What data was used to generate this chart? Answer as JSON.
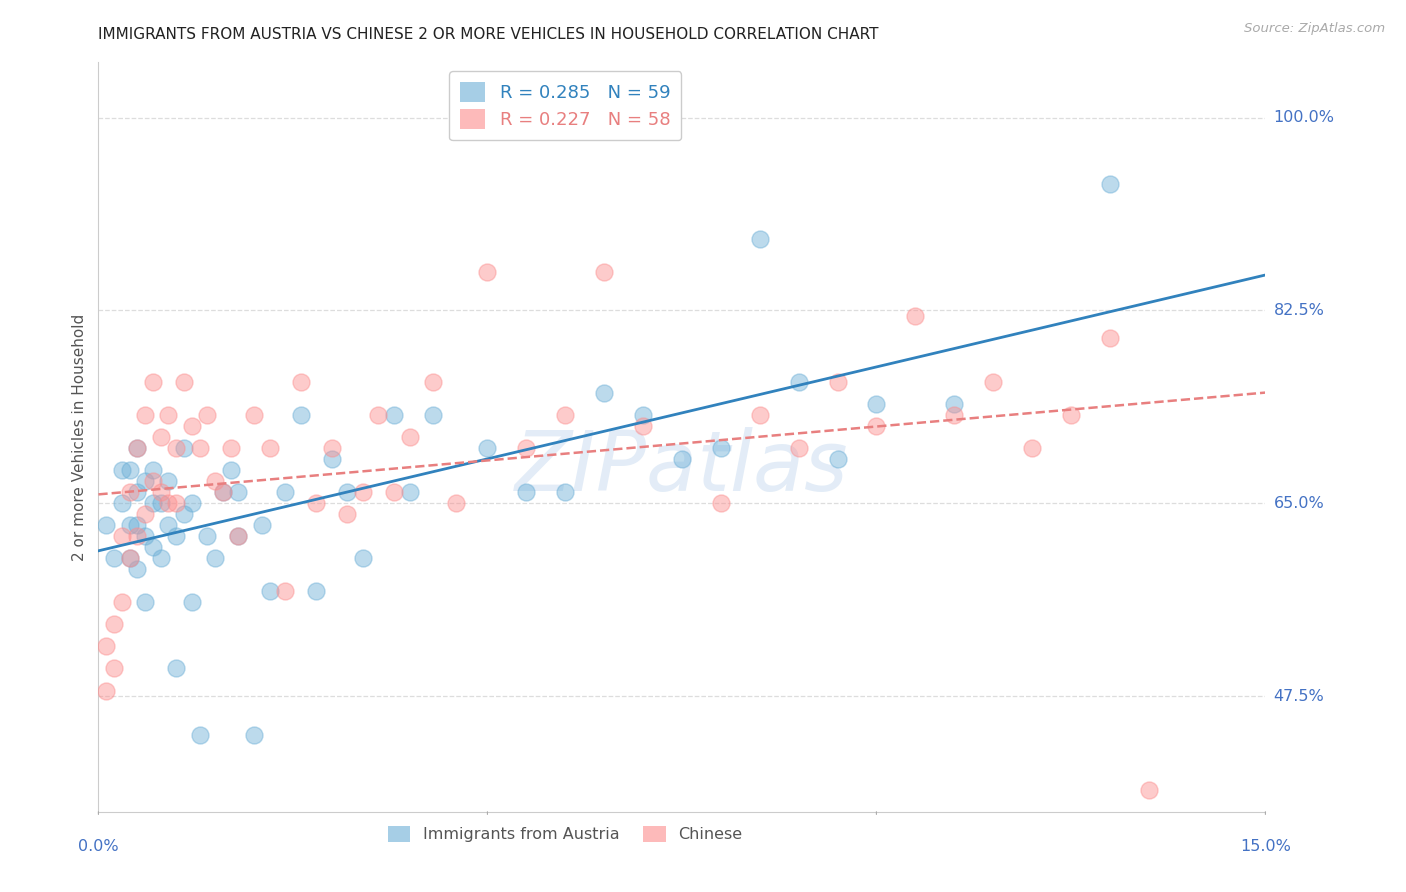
{
  "title": "IMMIGRANTS FROM AUSTRIA VS CHINESE 2 OR MORE VEHICLES IN HOUSEHOLD CORRELATION CHART",
  "source": "Source: ZipAtlas.com",
  "ylabel": "2 or more Vehicles in Household",
  "ytick_labels": [
    "100.0%",
    "82.5%",
    "65.0%",
    "47.5%"
  ],
  "ytick_values": [
    1.0,
    0.825,
    0.65,
    0.475
  ],
  "xlim": [
    0.0,
    0.15
  ],
  "ylim": [
    0.37,
    1.05
  ],
  "legend_color1": "#6baed6",
  "legend_color2": "#fc8d8d",
  "austria_color": "#6baed6",
  "chinese_color": "#fc8d8d",
  "trendline_austria_color": "#3182bd",
  "trendline_chinese_color": "#e87f7f",
  "watermark": "ZIPatlas",
  "austria_x": [
    0.001,
    0.002,
    0.003,
    0.003,
    0.004,
    0.004,
    0.004,
    0.005,
    0.005,
    0.005,
    0.005,
    0.006,
    0.006,
    0.006,
    0.007,
    0.007,
    0.007,
    0.008,
    0.008,
    0.009,
    0.009,
    0.01,
    0.01,
    0.011,
    0.011,
    0.012,
    0.012,
    0.013,
    0.014,
    0.015,
    0.016,
    0.017,
    0.018,
    0.018,
    0.02,
    0.021,
    0.022,
    0.024,
    0.026,
    0.028,
    0.03,
    0.032,
    0.034,
    0.038,
    0.04,
    0.043,
    0.05,
    0.055,
    0.06,
    0.065,
    0.07,
    0.075,
    0.08,
    0.085,
    0.09,
    0.095,
    0.1,
    0.11,
    0.13
  ],
  "austria_y": [
    0.63,
    0.6,
    0.65,
    0.68,
    0.6,
    0.63,
    0.68,
    0.59,
    0.63,
    0.66,
    0.7,
    0.56,
    0.62,
    0.67,
    0.61,
    0.65,
    0.68,
    0.6,
    0.65,
    0.63,
    0.67,
    0.5,
    0.62,
    0.64,
    0.7,
    0.56,
    0.65,
    0.44,
    0.62,
    0.6,
    0.66,
    0.68,
    0.66,
    0.62,
    0.44,
    0.63,
    0.57,
    0.66,
    0.73,
    0.57,
    0.69,
    0.66,
    0.6,
    0.73,
    0.66,
    0.73,
    0.7,
    0.66,
    0.66,
    0.75,
    0.73,
    0.69,
    0.7,
    0.89,
    0.76,
    0.69,
    0.74,
    0.74,
    0.94
  ],
  "chinese_x": [
    0.001,
    0.001,
    0.002,
    0.002,
    0.003,
    0.003,
    0.004,
    0.004,
    0.005,
    0.005,
    0.006,
    0.006,
    0.007,
    0.007,
    0.008,
    0.008,
    0.009,
    0.009,
    0.01,
    0.01,
    0.011,
    0.012,
    0.013,
    0.014,
    0.015,
    0.016,
    0.017,
    0.018,
    0.02,
    0.022,
    0.024,
    0.026,
    0.028,
    0.03,
    0.032,
    0.034,
    0.036,
    0.038,
    0.04,
    0.043,
    0.046,
    0.05,
    0.055,
    0.06,
    0.065,
    0.07,
    0.08,
    0.085,
    0.09,
    0.095,
    0.1,
    0.105,
    0.11,
    0.115,
    0.12,
    0.125,
    0.13,
    0.135
  ],
  "chinese_y": [
    0.48,
    0.52,
    0.5,
    0.54,
    0.56,
    0.62,
    0.6,
    0.66,
    0.62,
    0.7,
    0.64,
    0.73,
    0.67,
    0.76,
    0.71,
    0.66,
    0.73,
    0.65,
    0.65,
    0.7,
    0.76,
    0.72,
    0.7,
    0.73,
    0.67,
    0.66,
    0.7,
    0.62,
    0.73,
    0.7,
    0.57,
    0.76,
    0.65,
    0.7,
    0.64,
    0.66,
    0.73,
    0.66,
    0.71,
    0.76,
    0.65,
    0.86,
    0.7,
    0.73,
    0.86,
    0.72,
    0.65,
    0.73,
    0.7,
    0.76,
    0.72,
    0.82,
    0.73,
    0.76,
    0.7,
    0.73,
    0.8,
    0.39
  ],
  "grid_color": "#dddddd",
  "background_color": "#ffffff",
  "title_fontsize": 11,
  "tick_label_color": "#4472c4"
}
